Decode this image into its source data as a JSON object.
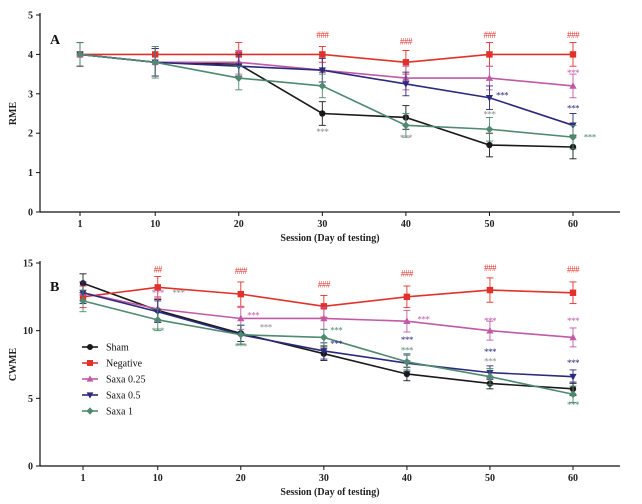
{
  "series_styles": [
    {
      "name": "Sham",
      "color": "#1a1a1a",
      "marker": "circle"
    },
    {
      "name": "Negative",
      "color": "#e2312a",
      "marker": "square"
    },
    {
      "name": "Saxa 0.25",
      "color": "#c05aa6",
      "marker": "triangle-up"
    },
    {
      "name": "Saxa 0.5",
      "color": "#2b2a7c",
      "marker": "triangle-down"
    },
    {
      "name": "Saxa 1",
      "color": "#4f8a70",
      "marker": "diamond"
    }
  ],
  "chart_data": [
    {
      "type": "line",
      "panel_label": "A",
      "title": "",
      "xlabel": "Session (Day of testing)",
      "ylabel": "RME",
      "x": [
        1,
        10,
        20,
        30,
        40,
        50,
        60
      ],
      "xticks": [
        "1",
        "10",
        "20",
        "30",
        "40",
        "50",
        "60"
      ],
      "ylim": [
        0,
        5
      ],
      "yticks": [
        0,
        1,
        2,
        3,
        4,
        5
      ],
      "series": [
        {
          "name": "Sham",
          "values": [
            4.0,
            3.8,
            3.75,
            2.5,
            2.4,
            1.7,
            1.65
          ],
          "errors": [
            0.3,
            0.35,
            0.3,
            0.3,
            0.3,
            0.3,
            0.3
          ]
        },
        {
          "name": "Negative",
          "values": [
            4.0,
            4.0,
            4.0,
            4.0,
            3.8,
            4.0,
            4.0
          ],
          "errors": [
            0.3,
            0.2,
            0.3,
            0.2,
            0.3,
            0.3,
            0.3
          ]
        },
        {
          "name": "Saxa 0.25",
          "values": [
            4.0,
            3.8,
            3.8,
            3.6,
            3.4,
            3.4,
            3.2
          ],
          "errors": [
            0.3,
            0.35,
            0.3,
            0.3,
            0.3,
            0.3,
            0.3
          ]
        },
        {
          "name": "Saxa 0.5",
          "values": [
            4.0,
            3.8,
            3.7,
            3.6,
            3.25,
            2.9,
            2.2
          ],
          "errors": [
            0.3,
            0.35,
            0.3,
            0.3,
            0.3,
            0.3,
            0.3
          ]
        },
        {
          "name": "Saxa 1",
          "values": [
            4.0,
            3.8,
            3.4,
            3.2,
            2.2,
            2.1,
            1.9
          ],
          "errors": [
            0.3,
            0.4,
            0.3,
            0.3,
            0.3,
            0.3,
            0.3
          ]
        }
      ],
      "annotations": [
        {
          "text": "###",
          "x": 30,
          "y": 4.42,
          "color": "#e2312a"
        },
        {
          "text": "###",
          "x": 40,
          "y": 4.25,
          "color": "#e2312a"
        },
        {
          "text": "###",
          "x": 50,
          "y": 4.42,
          "color": "#e2312a"
        },
        {
          "text": "###",
          "x": 60,
          "y": 4.42,
          "color": "#e2312a"
        },
        {
          "text": "***",
          "x": 30,
          "y": 1.95,
          "color": "#8a8a8a"
        },
        {
          "text": "***",
          "x": 40,
          "y": 1.8,
          "color": "#8a8a8a"
        },
        {
          "text": "***",
          "x": 60,
          "y": 3.45,
          "color": "#c05aa6"
        },
        {
          "text": "***",
          "x": 60,
          "y": 2.55,
          "color": "#2b2a7c"
        },
        {
          "text": "***",
          "x": 51.5,
          "y": 2.88,
          "color": "#2b2a7c"
        },
        {
          "text": "***",
          "x": 50,
          "y": 2.4,
          "color": "#8a8a8a"
        },
        {
          "text": "***",
          "x": 62,
          "y": 1.82,
          "color": "#4f8a70"
        }
      ]
    },
    {
      "type": "line",
      "panel_label": "B",
      "title": "",
      "xlabel": "Session (Day of testing)",
      "ylabel": "CWME",
      "x": [
        1,
        10,
        20,
        30,
        40,
        50,
        60
      ],
      "xticks": [
        "1",
        "10",
        "20",
        "30",
        "40",
        "50",
        "60"
      ],
      "ylim": [
        0,
        15
      ],
      "yticks": [
        0,
        5,
        10,
        15
      ],
      "series": [
        {
          "name": "Sham",
          "values": [
            13.5,
            11.5,
            9.8,
            8.3,
            6.8,
            6.1,
            5.7
          ],
          "errors": [
            0.7,
            0.8,
            0.6,
            0.5,
            0.5,
            0.4,
            0.5
          ]
        },
        {
          "name": "Negative",
          "values": [
            12.5,
            13.2,
            12.7,
            11.8,
            12.5,
            13.0,
            12.8
          ],
          "errors": [
            0.8,
            0.8,
            0.9,
            0.8,
            0.8,
            0.9,
            0.8
          ]
        },
        {
          "name": "Saxa 0.25",
          "values": [
            12.8,
            11.6,
            10.9,
            10.9,
            10.7,
            10.0,
            9.5
          ],
          "errors": [
            0.8,
            0.9,
            0.8,
            0.8,
            0.8,
            0.7,
            0.7
          ]
        },
        {
          "name": "Saxa 0.5",
          "values": [
            12.8,
            11.4,
            9.7,
            8.5,
            7.6,
            6.9,
            6.6
          ],
          "errors": [
            0.8,
            0.8,
            0.7,
            0.6,
            0.6,
            0.5,
            0.5
          ]
        },
        {
          "name": "Saxa 1",
          "values": [
            12.2,
            10.8,
            9.7,
            9.5,
            7.7,
            6.6,
            5.3
          ],
          "errors": [
            0.8,
            0.8,
            0.7,
            0.6,
            0.6,
            0.6,
            0.6
          ]
        }
      ],
      "annotations": [
        {
          "text": "##",
          "x": 10,
          "y": 14.3,
          "color": "#e2312a"
        },
        {
          "text": "###",
          "x": 20,
          "y": 14.2,
          "color": "#e2312a"
        },
        {
          "text": "###",
          "x": 30,
          "y": 13.2,
          "color": "#e2312a"
        },
        {
          "text": "###",
          "x": 40,
          "y": 14.0,
          "color": "#e2312a"
        },
        {
          "text": "###",
          "x": 50,
          "y": 14.4,
          "color": "#e2312a"
        },
        {
          "text": "###",
          "x": 60,
          "y": 14.3,
          "color": "#e2312a"
        },
        {
          "text": "***",
          "x": 10,
          "y": 12.55,
          "color": "#c05aa6"
        },
        {
          "text": "***",
          "x": 12.5,
          "y": 12.55,
          "color": "#8a8a8a"
        },
        {
          "text": "***",
          "x": 10,
          "y": 9.75,
          "color": "#4f8a70"
        },
        {
          "text": "***",
          "x": 21.5,
          "y": 10.9,
          "color": "#c05aa6"
        },
        {
          "text": "***",
          "x": 23,
          "y": 10.0,
          "color": "#8a8a8a"
        },
        {
          "text": "***",
          "x": 20,
          "y": 8.6,
          "color": "#4f8a70"
        },
        {
          "text": "***",
          "x": 31.5,
          "y": 9.8,
          "color": "#4f8a70"
        },
        {
          "text": "***",
          "x": 31.5,
          "y": 8.8,
          "color": "#2b2a7c"
        },
        {
          "text": "***",
          "x": 42,
          "y": 10.6,
          "color": "#c05aa6"
        },
        {
          "text": "***",
          "x": 40,
          "y": 9.1,
          "color": "#2b2a7c"
        },
        {
          "text": "***",
          "x": 40,
          "y": 8.3,
          "color": "#4f8a70"
        },
        {
          "text": "***",
          "x": 50,
          "y": 10.5,
          "color": "#c05aa6"
        },
        {
          "text": "***",
          "x": 50,
          "y": 8.2,
          "color": "#2b2a7c"
        },
        {
          "text": "***",
          "x": 50,
          "y": 7.5,
          "color": "#8a8a8a"
        },
        {
          "text": "***",
          "x": 60,
          "y": 10.5,
          "color": "#c05aa6"
        },
        {
          "text": "***",
          "x": 60,
          "y": 7.4,
          "color": "#2b2a7c"
        },
        {
          "text": "***",
          "x": 60,
          "y": 4.3,
          "color": "#4f8a70"
        }
      ],
      "legend": {
        "placement": "bottom-left",
        "entries": [
          "Sham",
          "Negative",
          "Saxa 0.25",
          "Saxa 0.5",
          "Saxa 1"
        ]
      }
    }
  ]
}
